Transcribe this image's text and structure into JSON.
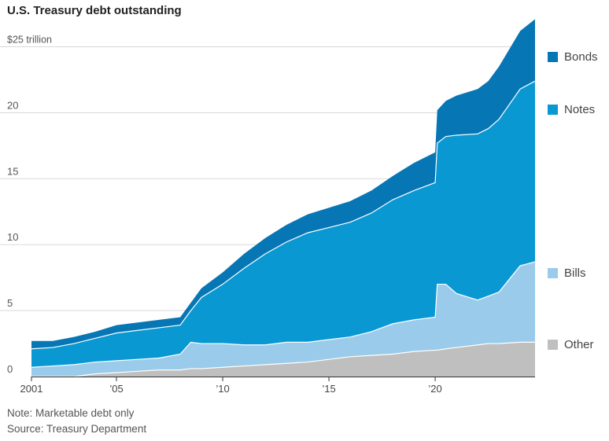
{
  "chart_data": {
    "type": "area",
    "stacked": true,
    "title": "U.S. Treasury debt outstanding",
    "ylabel": "",
    "xlabel": "",
    "y_unit": "trillion",
    "ylim": [
      0,
      27
    ],
    "xlim": [
      2001,
      2024.7
    ],
    "yticks": [
      {
        "value": 0,
        "label": "0"
      },
      {
        "value": 5,
        "label": "5"
      },
      {
        "value": 10,
        "label": "10"
      },
      {
        "value": 15,
        "label": "15"
      },
      {
        "value": 20,
        "label": "20"
      },
      {
        "value": 25,
        "label": "$25 trillion"
      }
    ],
    "xticks": [
      {
        "value": 2001,
        "label": "2001"
      },
      {
        "value": 2005,
        "label": "’05"
      },
      {
        "value": 2010,
        "label": "’10"
      },
      {
        "value": 2015,
        "label": "’15"
      },
      {
        "value": 2020,
        "label": "’20"
      }
    ],
    "grid": true,
    "legend_position": "right",
    "x": [
      2001,
      2002,
      2003,
      2004,
      2005,
      2006,
      2007,
      2008,
      2008.5,
      2009,
      2010,
      2011,
      2012,
      2013,
      2014,
      2015,
      2016,
      2017,
      2018,
      2019,
      2020,
      2020.1,
      2020.5,
      2021,
      2022,
      2022.5,
      2023,
      2024,
      2024.7
    ],
    "series": [
      {
        "name": "Other",
        "color": "#bfbfbf",
        "values": [
          0.0,
          0.0,
          0.0,
          0.2,
          0.3,
          0.4,
          0.5,
          0.5,
          0.6,
          0.6,
          0.7,
          0.8,
          0.9,
          1.0,
          1.1,
          1.3,
          1.5,
          1.6,
          1.7,
          1.9,
          2.0,
          2.0,
          2.1,
          2.2,
          2.4,
          2.5,
          2.5,
          2.6,
          2.6
        ]
      },
      {
        "name": "Bills",
        "color": "#9acbea",
        "values": [
          0.7,
          0.8,
          0.9,
          0.9,
          0.9,
          0.9,
          0.9,
          1.2,
          2.0,
          1.9,
          1.8,
          1.6,
          1.5,
          1.6,
          1.5,
          1.5,
          1.5,
          1.8,
          2.3,
          2.4,
          2.5,
          5.0,
          4.9,
          4.1,
          3.4,
          3.6,
          3.9,
          5.8,
          6.1
        ]
      },
      {
        "name": "Notes",
        "color": "#0a98d3",
        "values": [
          1.4,
          1.4,
          1.6,
          1.8,
          2.1,
          2.2,
          2.3,
          2.2,
          2.4,
          3.5,
          4.5,
          5.8,
          6.9,
          7.6,
          8.3,
          8.5,
          8.7,
          9.0,
          9.4,
          9.8,
          10.2,
          10.7,
          11.2,
          12.0,
          12.6,
          12.7,
          13.1,
          13.4,
          13.7
        ]
      },
      {
        "name": "Bonds",
        "color": "#0776b4",
        "values": [
          0.6,
          0.5,
          0.5,
          0.5,
          0.6,
          0.6,
          0.6,
          0.6,
          0.6,
          0.7,
          0.9,
          1.1,
          1.2,
          1.3,
          1.4,
          1.5,
          1.6,
          1.7,
          1.8,
          2.1,
          2.3,
          2.5,
          2.7,
          3.0,
          3.4,
          3.6,
          4.0,
          4.4,
          4.7
        ]
      }
    ]
  },
  "legend": [
    {
      "key": "bonds",
      "label": "Bonds",
      "color": "#0776b4"
    },
    {
      "key": "notes",
      "label": "Notes",
      "color": "#0a98d3"
    },
    {
      "key": "bills",
      "label": "Bills",
      "color": "#9acbea"
    },
    {
      "key": "other",
      "label": "Other",
      "color": "#bfbfbf"
    }
  ],
  "footnote": {
    "note": "Note: Marketable debt only",
    "source": "Source: Treasury Department"
  }
}
